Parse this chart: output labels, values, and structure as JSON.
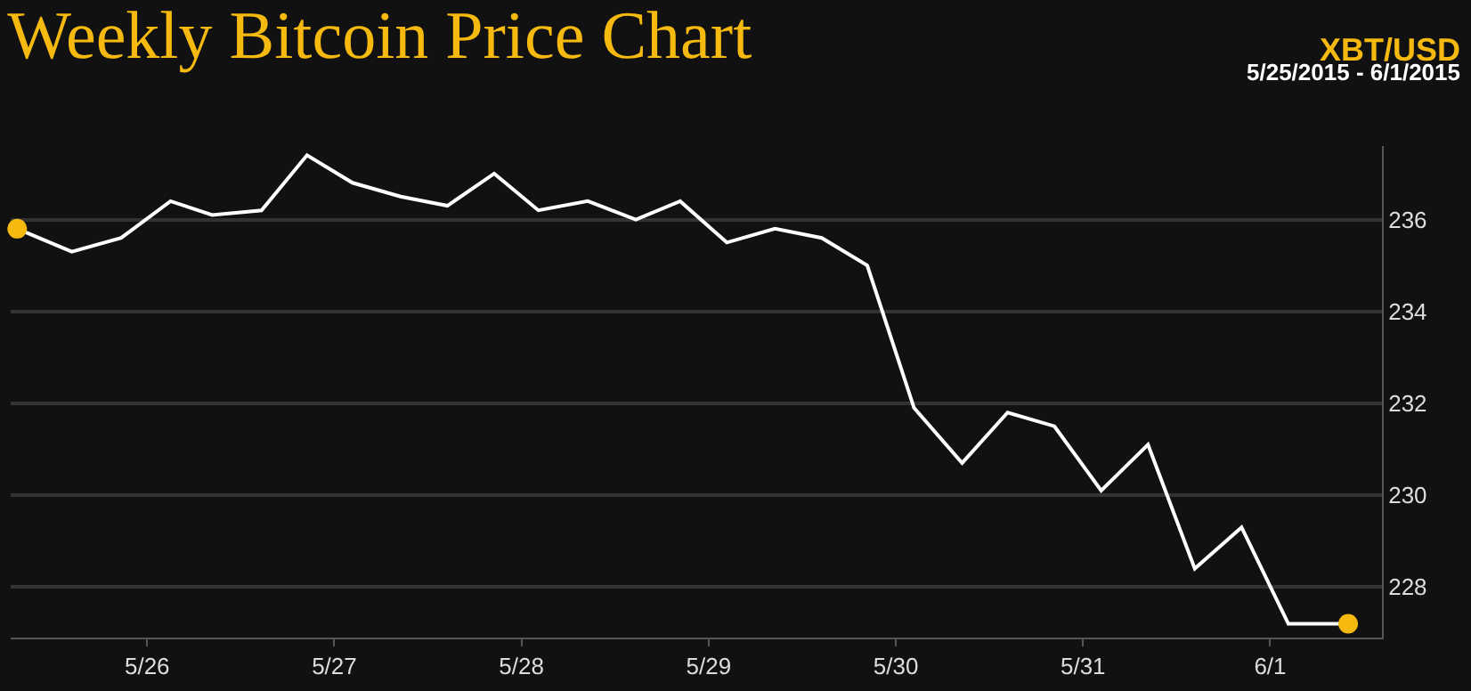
{
  "chart_data": {
    "type": "line",
    "title": "Weekly Bitcoin Price Chart",
    "subtitle": "XBT/USD",
    "annotations": [
      "5/25/2015 - 6/1/2015"
    ],
    "series": [
      {
        "color": "#ffffff",
        "marker": "none",
        "x": [
          "2015-05-25T07:20",
          "2015-05-25T14:20",
          "2015-05-25T20:40",
          "2015-05-26T03:00",
          "2015-05-26T08:20",
          "2015-05-26T14:40",
          "2015-05-26T20:30",
          "2015-05-27T02:20",
          "2015-05-27T08:30",
          "2015-05-27T14:30",
          "2015-05-27T20:30",
          "2015-05-28T02:10",
          "2015-05-28T08:30",
          "2015-05-28T14:40",
          "2015-05-28T20:20",
          "2015-05-29T02:20",
          "2015-05-29T08:30",
          "2015-05-29T14:30",
          "2015-05-29T20:20",
          "2015-05-30T02:20",
          "2015-05-30T08:30",
          "2015-05-30T14:20",
          "2015-05-30T20:20",
          "2015-05-31T02:20",
          "2015-05-31T08:20",
          "2015-05-31T14:20",
          "2015-05-31T20:20",
          "2015-06-01T02:20",
          "2015-06-01T10:00"
        ],
        "values": [
          235.8,
          235.3,
          235.6,
          236.4,
          236.1,
          236.2,
          237.4,
          236.8,
          236.5,
          236.3,
          237.0,
          236.2,
          236.4,
          236.0,
          236.4,
          235.5,
          235.8,
          235.6,
          235.0,
          231.9,
          230.7,
          231.8,
          231.5,
          230.1,
          231.1,
          228.4,
          229.3,
          227.2,
          227.2
        ]
      },
      {
        "type": "scatter",
        "color": "#f5b90f",
        "marker": "circle",
        "x": [
          "2015-05-25T07:20",
          "2015-06-01T10:00"
        ],
        "values": [
          235.8,
          227.2
        ]
      }
    ],
    "xlim": [
      "2015-05-25T06:30",
      "2015-06-01T14:20"
    ],
    "xticks": [
      {
        "value": "2015-05-26",
        "label": "5/26"
      },
      {
        "value": "2015-05-27",
        "label": "5/27"
      },
      {
        "value": "2015-05-28",
        "label": "5/28"
      },
      {
        "value": "2015-05-29",
        "label": "5/29"
      },
      {
        "value": "2015-05-30",
        "label": "5/30"
      },
      {
        "value": "2015-05-31",
        "label": "5/31"
      },
      {
        "value": "2015-06-01",
        "label": "6/1"
      }
    ],
    "ylim": [
      226.9,
      237.6
    ],
    "yticks": [
      228,
      230,
      232,
      234,
      236
    ],
    "grid": "y"
  }
}
